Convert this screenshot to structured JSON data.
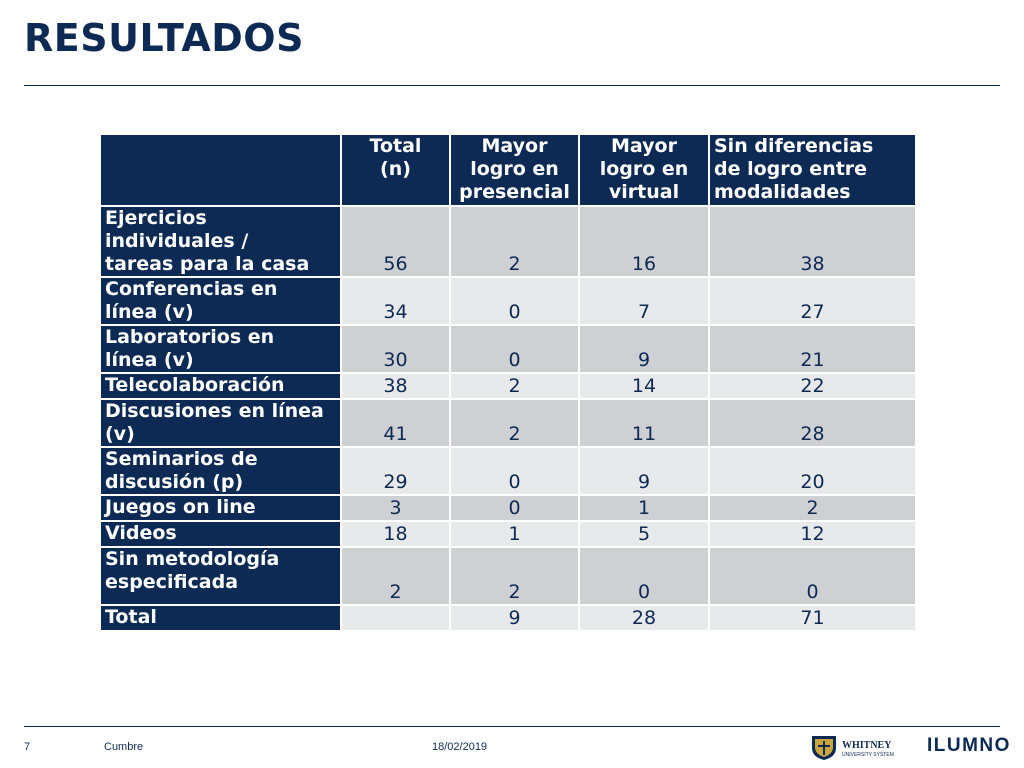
{
  "slide": {
    "title": "RESULTADOS"
  },
  "table": {
    "headers": [
      "",
      "Total\n(n)",
      "Mayor\nlogro en\npresencial",
      "Mayor\nlogro en\nvirtual",
      "Sin diferencias\nde logro entre\nmodalidades"
    ],
    "rows": [
      {
        "label": "Ejercicios\nindividuales /\ntareas para la casa",
        "cells": [
          "56",
          "2",
          "16",
          "38"
        ]
      },
      {
        "label": "Conferencias en\nlínea (v)",
        "cells": [
          "34",
          "0",
          "7",
          "27"
        ]
      },
      {
        "label": "Laboratorios en\nlínea (v)",
        "cells": [
          "30",
          "0",
          "9",
          "21"
        ]
      },
      {
        "label": "Telecolaboración",
        "cells": [
          "38",
          "2",
          "14",
          "22"
        ]
      },
      {
        "label": "Discusiones en línea\n(v)",
        "cells": [
          "41",
          "2",
          "11",
          "28"
        ]
      },
      {
        "label": "Seminarios de\ndiscusión (p)",
        "cells": [
          "29",
          "0",
          "9",
          "20"
        ]
      },
      {
        "label": "Juegos on line",
        "cells": [
          "3",
          "0",
          "1",
          "2"
        ]
      },
      {
        "label": "Videos",
        "cells": [
          "18",
          "1",
          "5",
          "12"
        ]
      },
      {
        "label": "Sin metodología\nespecificada",
        "cells": [
          "2",
          "2",
          "0",
          "0"
        ]
      },
      {
        "label": "Total",
        "cells": [
          "",
          "9",
          "28",
          "71"
        ]
      }
    ]
  },
  "footer": {
    "page_number": "7",
    "presenter": "Cumbre",
    "date": "18/02/2019",
    "logo_whitney": "WHITNEY",
    "logo_whitney_sub": "UNIVERSITY SYSTEM",
    "logo_ilumno": "ILUMNO"
  },
  "colors": {
    "navy": "#0d2a55",
    "row_dark": "#cfd0d4",
    "row_light": "#e8e9eb"
  }
}
